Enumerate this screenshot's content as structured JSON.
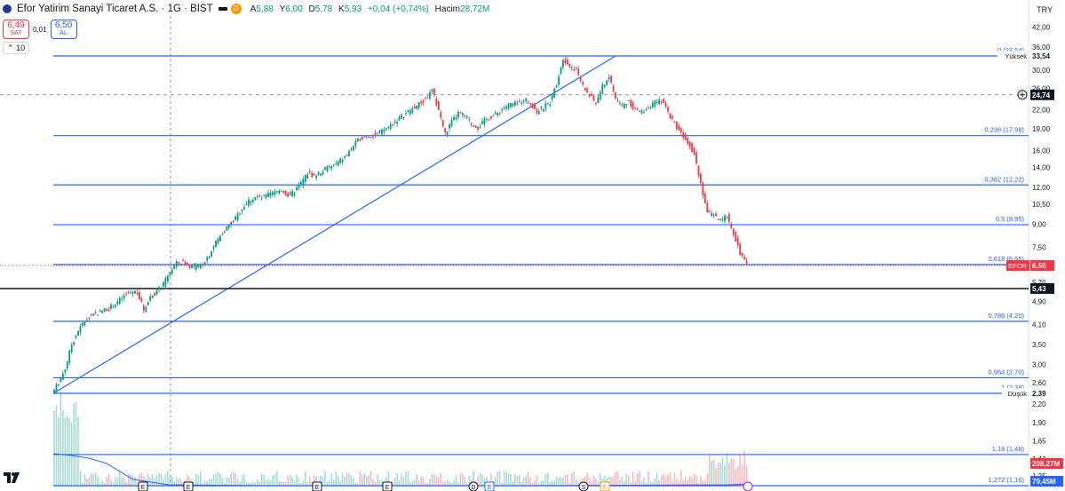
{
  "header": {
    "title": "Efor Yatirim Sanayi Ticaret A.S. · 1G · BIST",
    "badge": "D",
    "ohlc": [
      {
        "k": "A",
        "v": "5,88"
      },
      {
        "k": "Y",
        "v": "6,00"
      },
      {
        "k": "D",
        "v": "5,78"
      },
      {
        "k": "K",
        "v": "5,93"
      }
    ],
    "change": "+0,04 (+0,74%)",
    "volume_label": "Hacim",
    "volume_value": "28,72M"
  },
  "trade": {
    "sell_price": "6,49",
    "sell_label": "SAT",
    "spread": "0,01",
    "buy_price": "6,50",
    "buy_label": "AL"
  },
  "indicator_toggle": "10",
  "currency": "TRY",
  "colors": {
    "up": "#089981",
    "down": "#f23645",
    "fib": "#2962ff",
    "volume_ma": "#2962ff"
  },
  "chart_data": {
    "type": "candlestick",
    "y_scale": "log",
    "y_ticks": [
      "42,00",
      "36,00",
      "30,00",
      "26,00",
      "22,00",
      "19,00",
      "16,00",
      "14,00",
      "12,00",
      "10,50",
      "9,00",
      "7,50",
      "5,70",
      "4,90",
      "4,10",
      "3,50",
      "3,00",
      "2,60",
      "2,20",
      "1,90",
      "1,65",
      "1,43",
      "1,25"
    ],
    "fib_levels": [
      {
        "label": "0 (33,54)",
        "value": 33.54
      },
      {
        "label": "0,236 (17,98)",
        "value": 17.98
      },
      {
        "label": "0,382 (12,22)",
        "value": 12.22
      },
      {
        "label": "0,5 (8,95)",
        "value": 8.95
      },
      {
        "label": "0,618 (6,55)",
        "value": 6.55
      },
      {
        "label": "0,786 (4,20)",
        "value": 4.2
      },
      {
        "label": "0,954 (2,70)",
        "value": 2.7
      },
      {
        "label": "1 (2,39)",
        "value": 2.39
      },
      {
        "label": "1,18 (1,48)",
        "value": 1.48
      },
      {
        "label": "1,272 (1,16)",
        "value": 1.16
      }
    ],
    "axis_tags": [
      {
        "label": "Yüksek",
        "value_text": "33,54",
        "value": 33.54,
        "style": "plain"
      },
      {
        "label": "",
        "value_text": "24,74",
        "value": 24.74,
        "style": "dark",
        "icon": true
      },
      {
        "label": "EFOR",
        "value_text": "6,50",
        "value": 6.5,
        "style": "red"
      },
      {
        "label": "",
        "value_text": "5,43",
        "value": 5.43,
        "style": "dark"
      },
      {
        "label": "Düşük",
        "value_text": "2,39",
        "value": 2.39,
        "style": "plain"
      }
    ],
    "volume_tags": [
      {
        "value_text": "208,27M",
        "style": "red"
      },
      {
        "value_text": "79,45M",
        "style": "blue"
      }
    ],
    "horizontal_line": 5.43,
    "dashed_line": 24.74,
    "trendline": {
      "from": 2.39,
      "to": 33.54
    },
    "price_path": [
      2.39,
      2.6,
      2.9,
      3.5,
      3.9,
      4.2,
      4.4,
      4.5,
      4.6,
      4.7,
      4.9,
      5.1,
      5.3,
      5.3,
      4.6,
      5.1,
      5.3,
      5.6,
      6.2,
      6.6,
      6.7,
      6.5,
      6.4,
      6.6,
      7.1,
      7.8,
      8.4,
      8.9,
      9.4,
      10.2,
      10.8,
      11.1,
      11.0,
      11.3,
      11.5,
      11.8,
      11.2,
      11.6,
      12.4,
      13.4,
      13.1,
      13.5,
      14.0,
      14.2,
      14.8,
      15.4,
      16.6,
      17.6,
      18.0,
      18.0,
      18.4,
      19.0,
      19.8,
      20.6,
      21.4,
      22.2,
      23.0,
      23.8,
      25.6,
      22.0,
      18.2,
      20.0,
      21.4,
      21.0,
      19.8,
      19.2,
      20.2,
      20.8,
      21.4,
      22.4,
      23.0,
      23.0,
      24.0,
      23.2,
      21.6,
      22.4,
      23.4,
      27.0,
      33.0,
      31.0,
      30.2,
      26.4,
      24.6,
      23.2,
      26.4,
      28.6,
      24.0,
      22.6,
      23.6,
      22.0,
      21.6,
      22.6,
      23.2,
      23.6,
      21.6,
      19.8,
      18.4,
      17.2,
      15.6,
      12.4,
      9.8,
      9.6,
      9.2,
      9.6,
      8.4,
      7.2,
      6.5
    ],
    "event_markers": [
      "E",
      "E",
      "E",
      "E",
      "D",
      "E",
      "S",
      "E"
    ]
  }
}
